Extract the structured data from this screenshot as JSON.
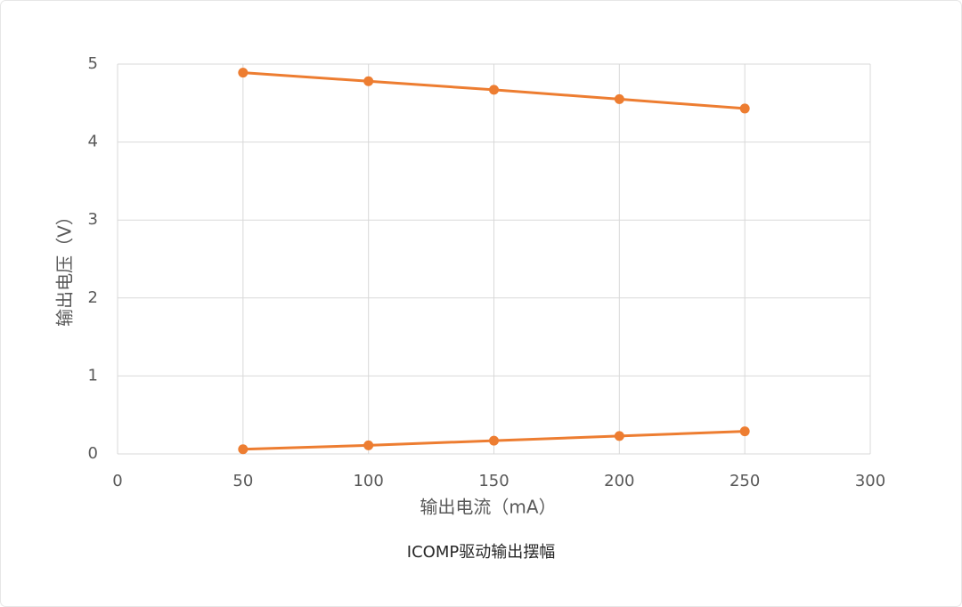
{
  "chart_data": {
    "type": "line",
    "title": "ICOMP驱动输出摆幅",
    "x_label": "输出电流（mA）",
    "y_label": "输出电压（V）",
    "x": [
      50,
      100,
      150,
      200,
      250
    ],
    "series": [
      {
        "color": "#ed7d31",
        "values": [
          4.89,
          4.78,
          4.67,
          4.55,
          4.43
        ]
      },
      {
        "color": "#ed7d31",
        "values": [
          0.06,
          0.11,
          0.17,
          0.23,
          0.29
        ]
      }
    ],
    "xlim": [
      0,
      300
    ],
    "xticks": [
      0,
      50,
      100,
      150,
      200,
      250,
      300
    ],
    "ylim": [
      0,
      5
    ],
    "yticks": [
      0,
      1,
      2,
      3,
      4,
      5
    ],
    "grid": true,
    "markers": true
  }
}
